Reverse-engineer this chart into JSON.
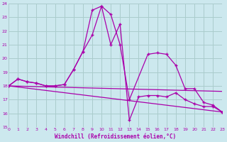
{
  "xlabel": "Windchill (Refroidissement éolien,°C)",
  "bg_color": "#cce8ee",
  "grid_color": "#aacccc",
  "line_color": "#aa00aa",
  "xmin": 0,
  "xmax": 23,
  "ymin": 15,
  "ymax": 24,
  "yticks": [
    15,
    16,
    17,
    18,
    19,
    20,
    21,
    22,
    23,
    24
  ],
  "xticks": [
    0,
    1,
    2,
    3,
    4,
    5,
    6,
    7,
    8,
    9,
    10,
    11,
    12,
    13,
    14,
    15,
    16,
    17,
    18,
    19,
    20,
    21,
    22,
    23
  ],
  "line1_x": [
    0,
    1,
    2,
    3,
    4,
    5,
    6,
    7,
    8,
    9,
    10,
    11,
    12,
    13,
    15,
    16,
    17,
    18,
    19,
    20,
    21,
    22,
    23
  ],
  "line1_y": [
    18.0,
    18.5,
    18.3,
    18.2,
    18.0,
    18.0,
    18.1,
    19.2,
    20.5,
    21.7,
    23.8,
    23.2,
    21.0,
    17.0,
    20.3,
    20.4,
    20.3,
    19.5,
    17.8,
    17.8,
    16.8,
    16.6,
    16.1
  ],
  "line2_x": [
    0,
    1,
    2,
    3,
    4,
    5,
    6,
    7,
    8,
    9,
    10,
    11,
    12,
    13,
    14,
    15,
    16,
    17,
    18,
    19,
    20,
    21,
    22,
    23
  ],
  "line2_y": [
    18.0,
    18.5,
    18.3,
    18.2,
    18.0,
    18.0,
    18.1,
    19.2,
    20.5,
    23.5,
    23.8,
    21.0,
    22.5,
    15.5,
    17.2,
    17.3,
    17.3,
    17.2,
    17.5,
    17.0,
    16.7,
    16.5,
    16.5,
    16.1
  ],
  "trend1_x": [
    0,
    23
  ],
  "trend1_y": [
    18.0,
    17.6
  ],
  "trend2_x": [
    0,
    23
  ],
  "trend2_y": [
    18.0,
    16.1
  ]
}
